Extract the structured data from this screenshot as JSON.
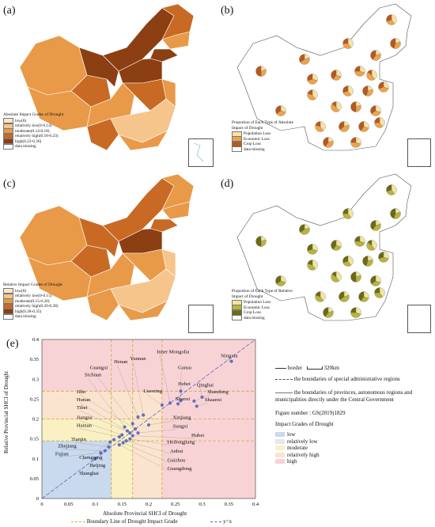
{
  "panels": {
    "a": {
      "label": "(a)"
    },
    "b": {
      "label": "(b)"
    },
    "c": {
      "label": "(c)"
    },
    "d": {
      "label": "(d)"
    },
    "e": {
      "label": "(e)"
    }
  },
  "legend_a": {
    "title": "Absolute Impact Grades of Drought",
    "items": [
      {
        "label": "low(0)",
        "color": "#fce7cc"
      },
      {
        "label": "relatively low(0-0.14)",
        "color": "#f6c58c"
      },
      {
        "label": "moderate(0.14-0.18)",
        "color": "#e89a49"
      },
      {
        "label": "relatively high(0.18-0.23)",
        "color": "#c86a24"
      },
      {
        "label": "high(0.23-0.36)",
        "color": "#8c3f12"
      },
      {
        "label": "data missing",
        "color": "#ffffff"
      }
    ]
  },
  "legend_b": {
    "title": "Proportion of Each Type of Absolute Impact of Drought",
    "items": [
      {
        "label": "Population Loss",
        "color": "#f7e3a6"
      },
      {
        "label": "Economic Loss",
        "color": "#f0a24a"
      },
      {
        "label": "Crop Loss",
        "color": "#b8581c"
      },
      {
        "label": "data missing",
        "color": "#ffffff"
      }
    ]
  },
  "legend_c": {
    "title": "Relative Impact Grades of Drought",
    "items": [
      {
        "label": "low(0)",
        "color": "#fce7cc"
      },
      {
        "label": "relatively low(0-0.15)",
        "color": "#f6c58c"
      },
      {
        "label": "moderate(0.15-0.20)",
        "color": "#e89a49"
      },
      {
        "label": "relatively high(0.20-0.28)",
        "color": "#c86a24"
      },
      {
        "label": "high(0.28-0.35)",
        "color": "#8c3f12"
      },
      {
        "label": "data missing",
        "color": "#ffffff"
      }
    ]
  },
  "legend_d": {
    "title": "Proportion of Each Type of Relative Impact of Drought",
    "items": [
      {
        "label": "Population Loss",
        "color": "#efe6a0"
      },
      {
        "label": "Economic Loss",
        "color": "#b9b43a"
      },
      {
        "label": "Crop Loss",
        "color": "#6b6a16"
      },
      {
        "label": "data missing",
        "color": "#ffffff"
      }
    ]
  },
  "key": {
    "border_label": "border",
    "scale_label": "320km",
    "sar_label": "the boundaries of special administrative regions",
    "prov_label": "the boundaries of provinces, autonomous regions and municipalities directly under the Central Government",
    "figure_number": "Figure number : GS(2019)1829",
    "impact_title": "Impact Grades of Drought",
    "grades": [
      {
        "label": "low",
        "color": "#c9d9ee"
      },
      {
        "label": "relatively low",
        "color": "#e3e8f2"
      },
      {
        "label": "moderate",
        "color": "#faf0c4"
      },
      {
        "label": "relatively high",
        "color": "#fbe4cf"
      },
      {
        "label": "high",
        "color": "#f8d3d6"
      }
    ]
  },
  "chart_data": {
    "type": "scatter",
    "xlabel": "Absolute Provincial SHCI of Drought",
    "ylabel": "Relative Provincial SHCI of Drought",
    "xlim": [
      0,
      0.4
    ],
    "ylim": [
      0,
      0.4
    ],
    "xticks": [
      "0",
      "0.05",
      "0.1",
      "0.15",
      "0.2",
      "0.25",
      "0.3",
      "0.35",
      "0.4"
    ],
    "yticks": [
      "0",
      "0.05",
      "0.1",
      "0.15",
      "0.2",
      "0.25",
      "0.3",
      "0.35",
      "0.4"
    ],
    "boundaries_x": [
      0.13,
      0.17,
      0.225
    ],
    "boundaries_y": [
      0.145,
      0.2,
      0.27
    ],
    "boundary_legend": "Boundary Line of Drought Impact Grade",
    "diagonal_legend": "y=x",
    "points": [
      {
        "name": "Ningxia",
        "x": 0.355,
        "y": 0.345
      },
      {
        "name": "Gansu",
        "x": 0.26,
        "y": 0.27
      },
      {
        "name": "Qinghai",
        "x": 0.3,
        "y": 0.255
      },
      {
        "name": "Shandong",
        "x": 0.285,
        "y": 0.245
      },
      {
        "name": "Shaanxi",
        "x": 0.29,
        "y": 0.232
      },
      {
        "name": "Hebei",
        "x": 0.26,
        "y": 0.246
      },
      {
        "name": "Shanxi",
        "x": 0.255,
        "y": 0.238
      },
      {
        "name": "Inner Mongolia",
        "x": 0.24,
        "y": 0.24
      },
      {
        "name": "Liaoning",
        "x": 0.225,
        "y": 0.235
      },
      {
        "name": "Yunnan",
        "x": 0.19,
        "y": 0.21
      },
      {
        "name": "Henan",
        "x": 0.18,
        "y": 0.205
      },
      {
        "name": "Guangxi",
        "x": 0.17,
        "y": 0.188
      },
      {
        "name": "Sichuan",
        "x": 0.155,
        "y": 0.18
      },
      {
        "name": "Hunan",
        "x": 0.16,
        "y": 0.17
      },
      {
        "name": "Tibet",
        "x": 0.165,
        "y": 0.165
      },
      {
        "name": "Jiangsu",
        "x": 0.15,
        "y": 0.16
      },
      {
        "name": "Hainan",
        "x": 0.145,
        "y": 0.155
      },
      {
        "name": "Jilin",
        "x": 0.175,
        "y": 0.175
      },
      {
        "name": "Xinjiang",
        "x": 0.2,
        "y": 0.185
      },
      {
        "name": "Jiangxi",
        "x": 0.18,
        "y": 0.165
      },
      {
        "name": "Hubei",
        "x": 0.17,
        "y": 0.158
      },
      {
        "name": "Heilongjiang",
        "x": 0.165,
        "y": 0.15
      },
      {
        "name": "Anhui",
        "x": 0.158,
        "y": 0.145
      },
      {
        "name": "Guizhou",
        "x": 0.152,
        "y": 0.14
      },
      {
        "name": "Guangdong",
        "x": 0.145,
        "y": 0.135
      },
      {
        "name": "Tianjin",
        "x": 0.125,
        "y": 0.13
      },
      {
        "name": "Zhejiang",
        "x": 0.118,
        "y": 0.12
      },
      {
        "name": "Fujian",
        "x": 0.11,
        "y": 0.115
      },
      {
        "name": "Chongqing",
        "x": 0.135,
        "y": 0.148
      },
      {
        "name": "Beijing",
        "x": 0.128,
        "y": 0.142
      },
      {
        "name": "Shanghai",
        "x": 0.1,
        "y": 0.1
      }
    ],
    "labels": [
      {
        "name": "Inner Mongolia",
        "lx": 0.215,
        "ly": 0.365
      },
      {
        "name": "Ningxia",
        "lx": 0.335,
        "ly": 0.355
      },
      {
        "name": "Yunnan",
        "lx": 0.165,
        "ly": 0.348
      },
      {
        "name": "Henan",
        "lx": 0.135,
        "ly": 0.34
      },
      {
        "name": "Guangxi",
        "lx": 0.09,
        "ly": 0.325
      },
      {
        "name": "Gansu",
        "lx": 0.255,
        "ly": 0.325
      },
      {
        "name": "Sichuan",
        "lx": 0.08,
        "ly": 0.307
      },
      {
        "name": "Qinghai",
        "lx": 0.29,
        "ly": 0.282
      },
      {
        "name": "Hebei",
        "lx": 0.255,
        "ly": 0.285
      },
      {
        "name": "Liaoning",
        "lx": 0.19,
        "ly": 0.267
      },
      {
        "name": "Jilin",
        "lx": 0.065,
        "ly": 0.265
      },
      {
        "name": "Shandong",
        "lx": 0.31,
        "ly": 0.265
      },
      {
        "name": "Hunan",
        "lx": 0.065,
        "ly": 0.245
      },
      {
        "name": "Shanxi",
        "lx": 0.25,
        "ly": 0.247
      },
      {
        "name": "Shaanxi",
        "lx": 0.305,
        "ly": 0.245
      },
      {
        "name": "Tibet",
        "lx": 0.065,
        "ly": 0.225
      },
      {
        "name": "Jiangsu",
        "lx": 0.065,
        "ly": 0.2
      },
      {
        "name": "Xinjiang",
        "lx": 0.245,
        "ly": 0.2
      },
      {
        "name": "Hainan",
        "lx": 0.065,
        "ly": 0.18
      },
      {
        "name": "Jiangxi",
        "lx": 0.245,
        "ly": 0.178
      },
      {
        "name": "Hubei",
        "lx": 0.28,
        "ly": 0.155
      },
      {
        "name": "Tianjin",
        "lx": 0.055,
        "ly": 0.145
      },
      {
        "name": "Heilongjiang",
        "lx": 0.235,
        "ly": 0.138
      },
      {
        "name": "Zhejiang",
        "lx": 0.03,
        "ly": 0.128
      },
      {
        "name": "Anhui",
        "lx": 0.24,
        "ly": 0.115
      },
      {
        "name": "Fujian",
        "lx": 0.025,
        "ly": 0.108
      },
      {
        "name": "Chongqing",
        "lx": 0.07,
        "ly": 0.1
      },
      {
        "name": "Guizhou",
        "lx": 0.235,
        "ly": 0.093
      },
      {
        "name": "Beijing",
        "lx": 0.09,
        "ly": 0.08
      },
      {
        "name": "Guangdong",
        "lx": 0.235,
        "ly": 0.072
      },
      {
        "name": "Shanghai",
        "lx": 0.07,
        "ly": 0.06
      }
    ]
  }
}
